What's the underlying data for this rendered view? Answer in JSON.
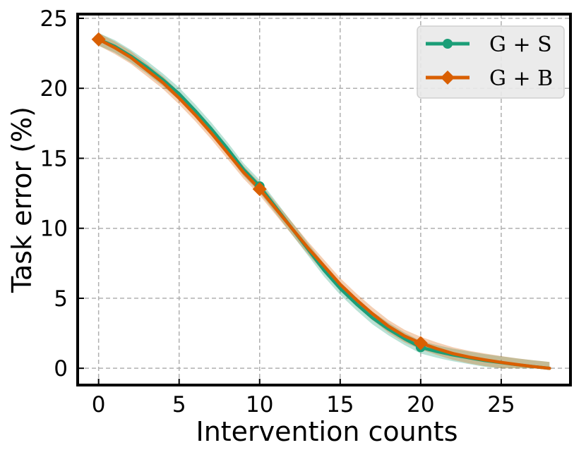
{
  "chart_data": {
    "type": "line",
    "xlabel": "Intervention counts",
    "ylabel": "Task error (%)",
    "xlim": [
      -1.3,
      29.3
    ],
    "ylim": [
      -1.2,
      25.3
    ],
    "xticks": [
      0,
      5,
      10,
      15,
      20,
      25
    ],
    "yticks": [
      0,
      5,
      10,
      15,
      20,
      25
    ],
    "grid": true,
    "legend_position": "top-right",
    "x": [
      0,
      1,
      2,
      3,
      4,
      5,
      6,
      7,
      8,
      9,
      10,
      11,
      12,
      13,
      14,
      15,
      16,
      17,
      18,
      19,
      20,
      21,
      22,
      23,
      24,
      25,
      26,
      27,
      28
    ],
    "series": [
      {
        "name": "G + S",
        "color": "#1b9e77",
        "marker": "circle",
        "marker_x": [
          0,
          10,
          20
        ],
        "values": [
          23.5,
          23.0,
          22.3,
          21.5,
          20.6,
          19.6,
          18.4,
          17.1,
          15.7,
          14.2,
          13.0,
          11.5,
          10.0,
          8.5,
          7.0,
          5.7,
          4.6,
          3.6,
          2.8,
          2.1,
          1.5,
          1.2,
          0.95,
          0.75,
          0.55,
          0.4,
          0.25,
          0.12,
          0.0
        ],
        "band": 0.45
      },
      {
        "name": "G + B",
        "color": "#d95f02",
        "marker": "diamond",
        "marker_x": [
          0,
          10,
          20
        ],
        "values": [
          23.5,
          22.9,
          22.2,
          21.3,
          20.4,
          19.3,
          18.1,
          16.8,
          15.4,
          14.0,
          12.8,
          11.4,
          10.0,
          8.6,
          7.3,
          6.0,
          4.9,
          3.9,
          3.0,
          2.3,
          1.8,
          1.4,
          1.05,
          0.8,
          0.6,
          0.42,
          0.26,
          0.12,
          0.0
        ],
        "band": 0.45
      }
    ]
  }
}
